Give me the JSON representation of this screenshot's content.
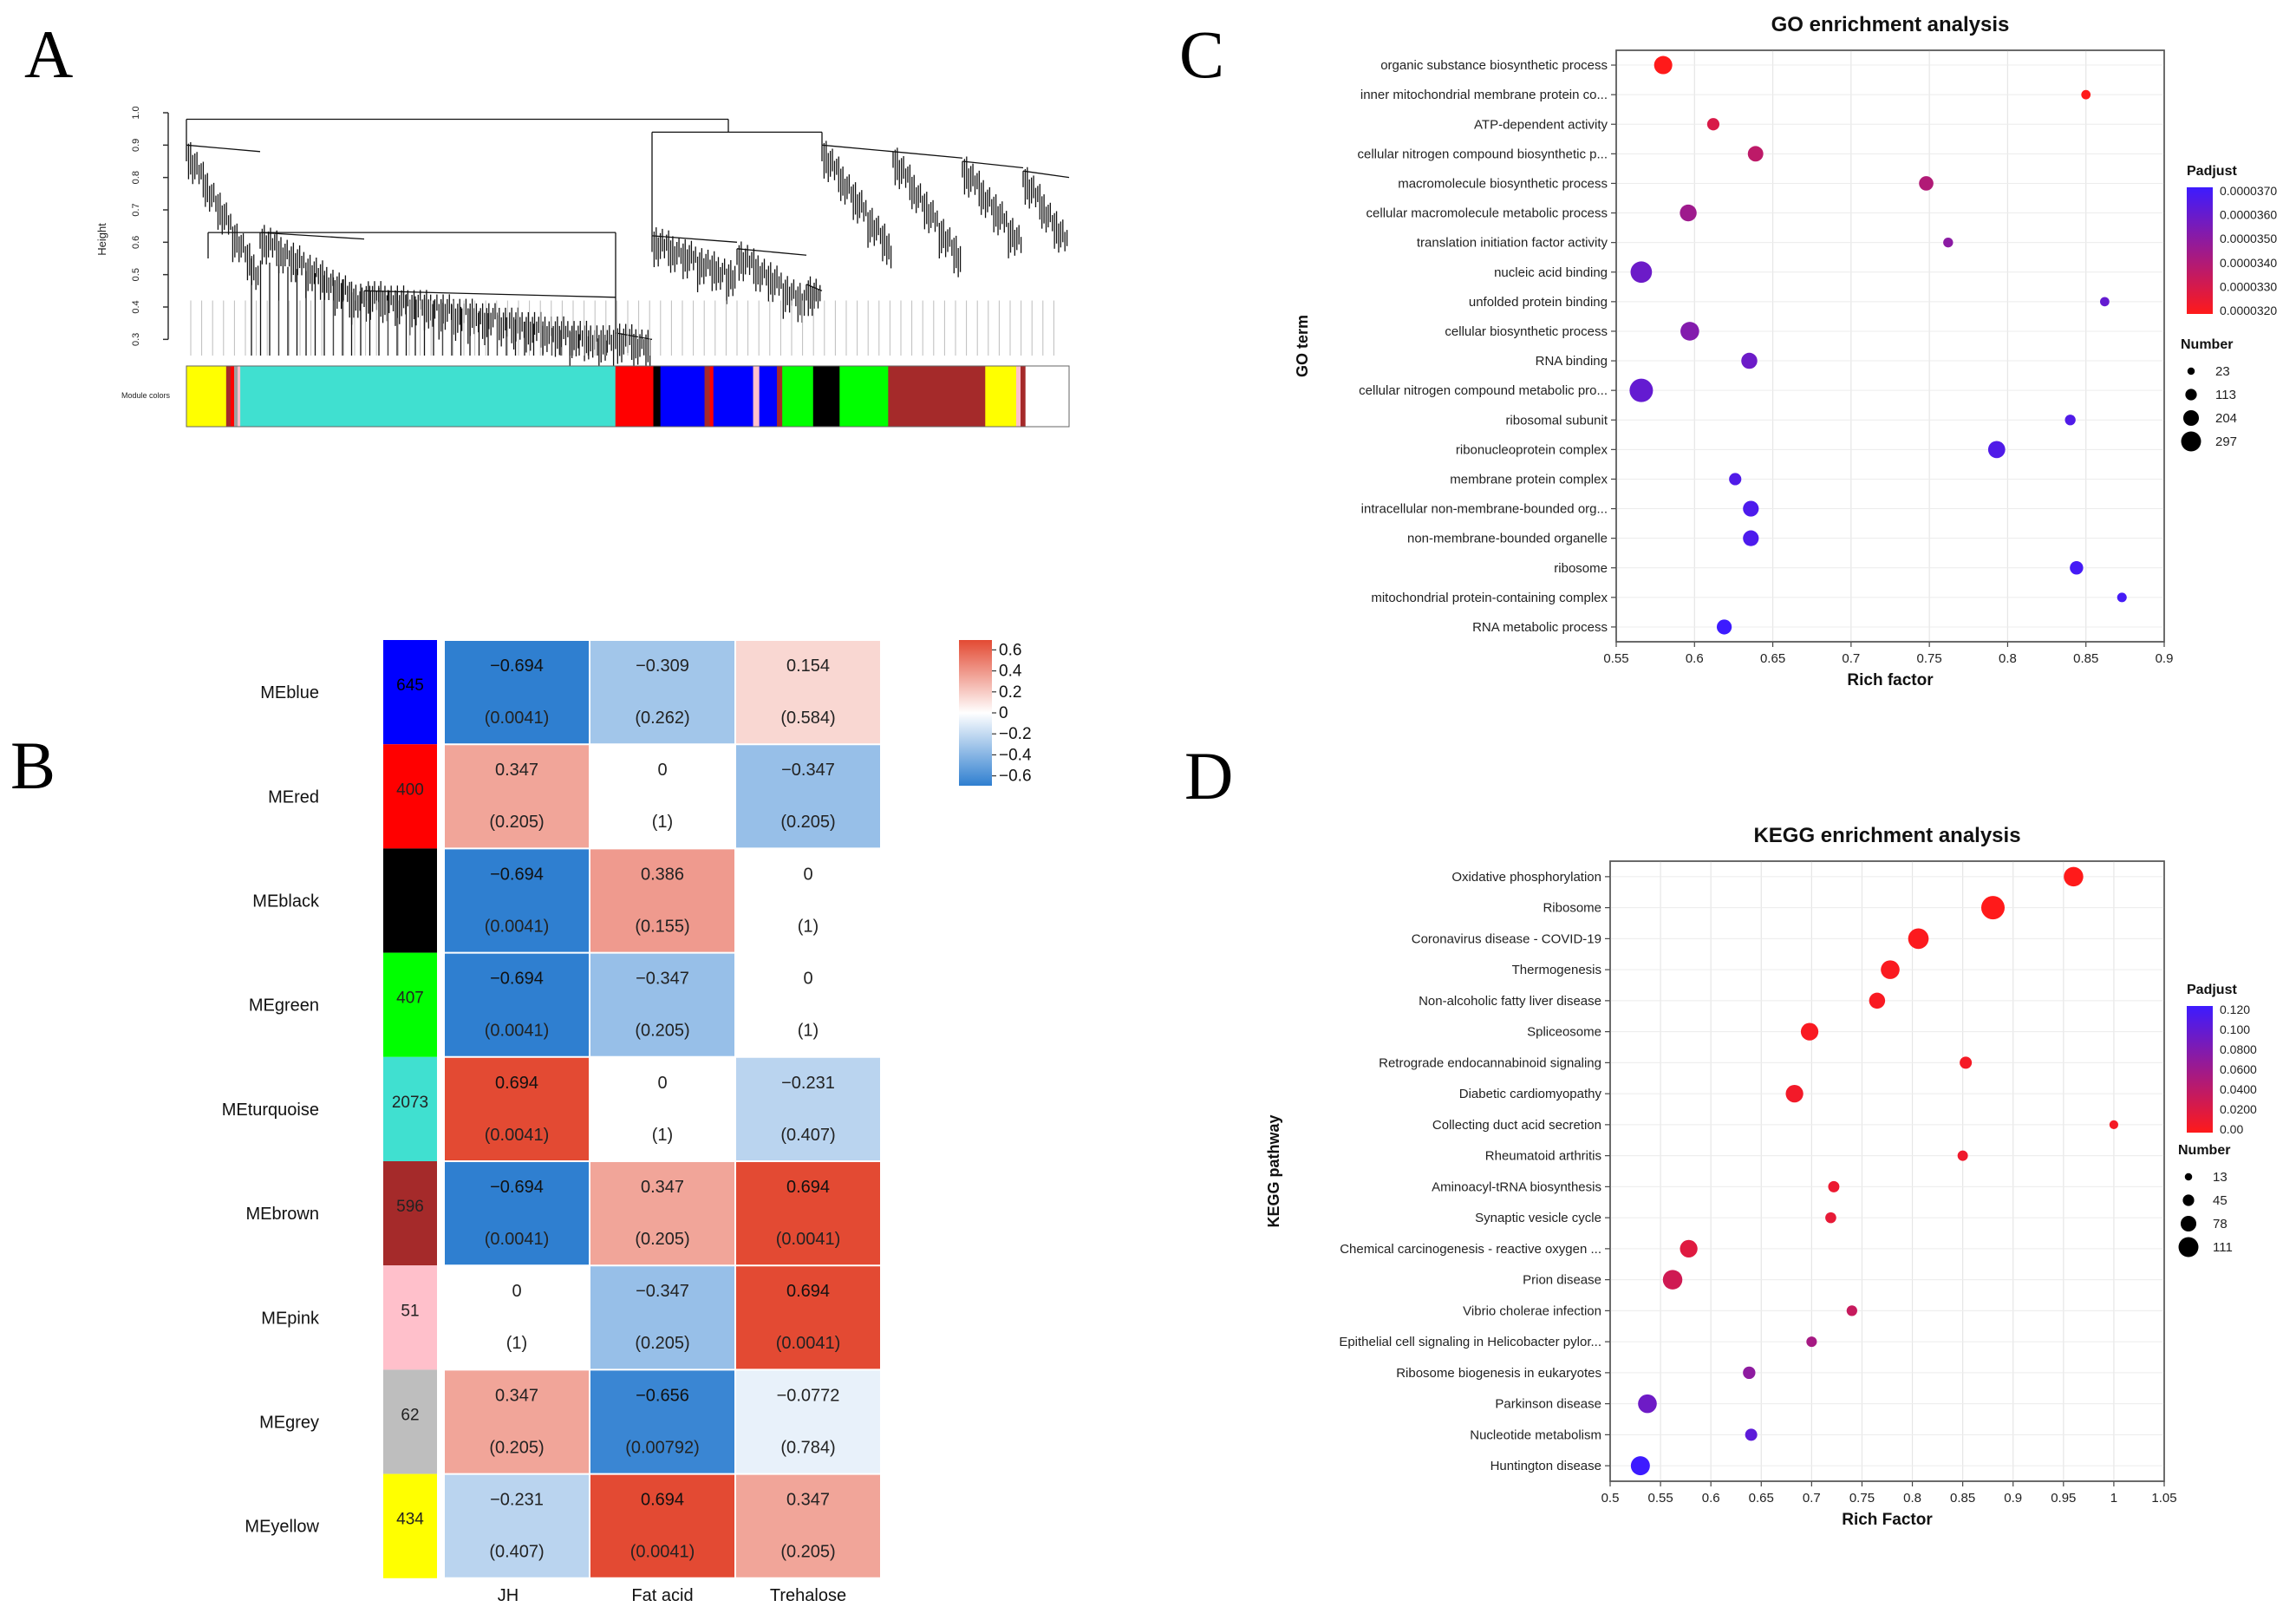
{
  "panels": {
    "a": "A",
    "b": "B",
    "c": "C",
    "d": "D"
  },
  "chart_data": [
    {
      "panel": "A",
      "type": "dendrogram",
      "ylabel": "Height",
      "yticks": [
        "0.3",
        "0.4",
        "0.5",
        "0.6",
        "0.7",
        "0.8",
        "0.9",
        "1.0"
      ],
      "ylim": [
        0.25,
        1.0
      ],
      "module_row_label": "Module colors",
      "module_bar": [
        {
          "color": "#ffff00",
          "w": 0.045
        },
        {
          "color": "#a52a2a",
          "w": 0.005
        },
        {
          "color": "#ff0000",
          "w": 0.004
        },
        {
          "color": "#a0a0a0",
          "w": 0.004
        },
        {
          "color": "#ffc0cb",
          "w": 0.003
        },
        {
          "color": "#40e0d0",
          "w": 0.425
        },
        {
          "color": "#ff0000",
          "w": 0.043
        },
        {
          "color": "#000000",
          "w": 0.008
        },
        {
          "color": "#0000ff",
          "w": 0.05
        },
        {
          "color": "#a52a2a",
          "w": 0.006
        },
        {
          "color": "#ff0000",
          "w": 0.004
        },
        {
          "color": "#0000ff",
          "w": 0.045
        },
        {
          "color": "#ffc0cb",
          "w": 0.007
        },
        {
          "color": "#0000ff",
          "w": 0.02
        },
        {
          "color": "#a52a2a",
          "w": 0.006
        },
        {
          "color": "#00ff00",
          "w": 0.035
        },
        {
          "color": "#000000",
          "w": 0.03
        },
        {
          "color": "#00ff00",
          "w": 0.055
        },
        {
          "color": "#a52a2a",
          "w": 0.11
        },
        {
          "color": "#ffff00",
          "w": 0.035
        },
        {
          "color": "#ffc0cb",
          "w": 0.005
        },
        {
          "color": "#a52a2a",
          "w": 0.005
        }
      ]
    },
    {
      "panel": "B",
      "type": "heatmap",
      "columns": [
        "JH",
        "Fat acid",
        "Trehalose"
      ],
      "rows": [
        {
          "name": "MEblue",
          "color": "#0000ff",
          "count": "645",
          "cells": [
            [
              "−0.694",
              "(0.0041)"
            ],
            [
              "−0.309",
              "(0.262)"
            ],
            [
              "0.154",
              "(0.584)"
            ]
          ],
          "values": [
            -0.694,
            -0.309,
            0.154
          ]
        },
        {
          "name": "MEred",
          "color": "#ff0000",
          "count": "400",
          "cells": [
            [
              "0.347",
              "(0.205)"
            ],
            [
              "0",
              "(1)"
            ],
            [
              "−0.347",
              "(0.205)"
            ]
          ],
          "values": [
            0.347,
            0,
            -0.347
          ]
        },
        {
          "name": "MEblack",
          "color": "#000000",
          "count": "",
          "cells": [
            [
              "−0.694",
              "(0.0041)"
            ],
            [
              "0.386",
              "(0.155)"
            ],
            [
              "0",
              "(1)"
            ]
          ],
          "values": [
            -0.694,
            0.386,
            0
          ]
        },
        {
          "name": "MEgreen",
          "color": "#00ff00",
          "count": "407",
          "cells": [
            [
              "−0.694",
              "(0.0041)"
            ],
            [
              "−0.347",
              "(0.205)"
            ],
            [
              "0",
              "(1)"
            ]
          ],
          "values": [
            -0.694,
            -0.347,
            0
          ]
        },
        {
          "name": "MEturquoise",
          "color": "#40e0d0",
          "count": "2073",
          "cells": [
            [
              "0.694",
              "(0.0041)"
            ],
            [
              "0",
              "(1)"
            ],
            [
              "−0.231",
              "(0.407)"
            ]
          ],
          "values": [
            0.694,
            0,
            -0.231
          ]
        },
        {
          "name": "MEbrown",
          "color": "#a52a2a",
          "count": "596",
          "cells": [
            [
              "−0.694",
              "(0.0041)"
            ],
            [
              "0.347",
              "(0.205)"
            ],
            [
              "0.694",
              "(0.0041)"
            ]
          ],
          "values": [
            -0.694,
            0.347,
            0.694
          ]
        },
        {
          "name": "MEpink",
          "color": "#ffc0cb",
          "count": "51",
          "cells": [
            [
              "0",
              "(1)"
            ],
            [
              "−0.347",
              "(0.205)"
            ],
            [
              "0.694",
              "(0.0041)"
            ]
          ],
          "values": [
            0,
            -0.347,
            0.694
          ]
        },
        {
          "name": "MEgrey",
          "color": "#bebebe",
          "count": "62",
          "cells": [
            [
              "0.347",
              "(0.205)"
            ],
            [
              "−0.656",
              "(0.00792)"
            ],
            [
              "−0.0772",
              "(0.784)"
            ]
          ],
          "values": [
            0.347,
            -0.656,
            -0.0772
          ]
        },
        {
          "name": "MEyellow",
          "color": "#ffff00",
          "count": "434",
          "cells": [
            [
              "−0.231",
              "(0.407)"
            ],
            [
              "0.694",
              "(0.0041)"
            ],
            [
              "0.347",
              "(0.205)"
            ]
          ],
          "values": [
            -0.231,
            0.694,
            0.347
          ]
        }
      ],
      "legend_ticks": [
        "0.6",
        "0.4",
        "0.2",
        "0",
        "−0.2",
        "−0.4",
        "−0.6"
      ],
      "legend_values": [
        0.6,
        0.4,
        0.2,
        0,
        -0.2,
        -0.4,
        -0.6
      ],
      "colors": {
        "neg": "#2f7fd0",
        "mid": "#ffffff",
        "pos": "#e34a33"
      }
    },
    {
      "panel": "C",
      "type": "scatter",
      "title": "GO enrichment analysis",
      "xlabel": "Rich factor",
      "ylabel": "GO term",
      "xlim": [
        0.55,
        0.9
      ],
      "xticks": [
        "0.55",
        "0.6",
        "0.65",
        "0.7",
        "0.75",
        "0.8",
        "0.85",
        "0.9"
      ],
      "xtick_values": [
        0.55,
        0.6,
        0.65,
        0.7,
        0.75,
        0.8,
        0.85,
        0.9
      ],
      "color_legend": {
        "title": "Padjust",
        "ticks": [
          "0.0000370",
          "0.0000360",
          "0.0000350",
          "0.0000340",
          "0.0000330",
          "0.0000320"
        ],
        "high": "#3d1bff",
        "low": "#ff1a1a"
      },
      "size_legend": {
        "title": "Number",
        "labels": [
          "23",
          "113",
          "204",
          "297"
        ],
        "values": [
          23,
          113,
          204,
          297
        ]
      },
      "points": [
        {
          "term": "organic substance biosynthetic process",
          "x": 0.58,
          "n": 200,
          "padj": 3.2e-05
        },
        {
          "term": "inner mitochondrial membrane protein co...",
          "x": 0.85,
          "n": 35,
          "padj": 3.2e-05
        },
        {
          "term": "ATP-dependent activity",
          "x": 0.612,
          "n": 90,
          "padj": 3.3e-05
        },
        {
          "term": "cellular nitrogen compound biosynthetic p...",
          "x": 0.639,
          "n": 150,
          "padj": 3.37e-05
        },
        {
          "term": "macromolecule biosynthetic process",
          "x": 0.748,
          "n": 130,
          "padj": 3.4e-05
        },
        {
          "term": "cellular macromolecule metabolic process",
          "x": 0.596,
          "n": 175,
          "padj": 3.45e-05
        },
        {
          "term": "translation initiation factor activity",
          "x": 0.762,
          "n": 45,
          "padj": 3.5e-05
        },
        {
          "term": "nucleic acid binding",
          "x": 0.566,
          "n": 260,
          "padj": 3.58e-05
        },
        {
          "term": "unfolded protein binding",
          "x": 0.862,
          "n": 35,
          "padj": 3.6e-05
        },
        {
          "term": "cellular biosynthetic process",
          "x": 0.597,
          "n": 210,
          "padj": 3.52e-05
        },
        {
          "term": "RNA binding",
          "x": 0.635,
          "n": 160,
          "padj": 3.58e-05
        },
        {
          "term": "cellular nitrogen compound metabolic pro...",
          "x": 0.566,
          "n": 297,
          "padj": 3.6e-05
        },
        {
          "term": "ribosomal subunit",
          "x": 0.84,
          "n": 60,
          "padj": 3.65e-05
        },
        {
          "term": "ribonucleoprotein complex",
          "x": 0.793,
          "n": 180,
          "padj": 3.65e-05
        },
        {
          "term": "membrane protein complex",
          "x": 0.626,
          "n": 90,
          "padj": 3.65e-05
        },
        {
          "term": "intracellular non-membrane-bounded org...",
          "x": 0.636,
          "n": 155,
          "padj": 3.66e-05
        },
        {
          "term": "non-membrane-bounded organelle",
          "x": 0.636,
          "n": 155,
          "padj": 3.66e-05
        },
        {
          "term": "ribosome",
          "x": 0.844,
          "n": 110,
          "padj": 3.68e-05
        },
        {
          "term": "mitochondrial protein-containing complex",
          "x": 0.873,
          "n": 40,
          "padj": 3.68e-05
        },
        {
          "term": "RNA metabolic process",
          "x": 0.619,
          "n": 140,
          "padj": 3.7e-05
        }
      ]
    },
    {
      "panel": "D",
      "type": "scatter",
      "title": "KEGG enrichment analysis",
      "xlabel": "Rich Factor",
      "ylabel": "KEGG pathway",
      "xlim": [
        0.5,
        1.05
      ],
      "xticks": [
        "0.5",
        "0.55",
        "0.6",
        "0.65",
        "0.7",
        "0.75",
        "0.8",
        "0.85",
        "0.9",
        "0.95",
        "1",
        "1.05"
      ],
      "xtick_values": [
        0.5,
        0.55,
        0.6,
        0.65,
        0.7,
        0.75,
        0.8,
        0.85,
        0.9,
        0.95,
        1.0,
        1.05
      ],
      "color_legend": {
        "title": "Padjust",
        "ticks": [
          "0.120",
          "0.100",
          "0.0800",
          "0.0600",
          "0.0400",
          "0.0200",
          "0.00"
        ],
        "high": "#3d1bff",
        "low": "#ff1a1a"
      },
      "size_legend": {
        "title": "Number",
        "labels": [
          "13",
          "45",
          "78",
          "111"
        ],
        "values": [
          13,
          45,
          78,
          111
        ]
      },
      "points": [
        {
          "term": "Oxidative phosphorylation",
          "x": 0.96,
          "n": 85,
          "padj": 0.0
        },
        {
          "term": "Ribosome",
          "x": 0.88,
          "n": 111,
          "padj": 0.0
        },
        {
          "term": "Coronavirus disease - COVID-19",
          "x": 0.806,
          "n": 92,
          "padj": 0.002
        },
        {
          "term": "Thermogenesis",
          "x": 0.778,
          "n": 80,
          "padj": 0.003
        },
        {
          "term": "Non-alcoholic fatty liver disease",
          "x": 0.765,
          "n": 62,
          "padj": 0.004
        },
        {
          "term": "Spliceosome",
          "x": 0.698,
          "n": 72,
          "padj": 0.004
        },
        {
          "term": "Retrograde endocannabinoid signaling",
          "x": 0.853,
          "n": 36,
          "padj": 0.006
        },
        {
          "term": "Diabetic cardiomyopathy",
          "x": 0.683,
          "n": 72,
          "padj": 0.008
        },
        {
          "term": "Collecting duct acid secretion",
          "x": 1.0,
          "n": 14,
          "padj": 0.006
        },
        {
          "term": "Rheumatoid arthritis",
          "x": 0.85,
          "n": 24,
          "padj": 0.01
        },
        {
          "term": "Aminoacyl-tRNA biosynthesis",
          "x": 0.722,
          "n": 30,
          "padj": 0.012
        },
        {
          "term": "Synaptic vesicle cycle",
          "x": 0.719,
          "n": 28,
          "padj": 0.015
        },
        {
          "term": "Chemical carcinogenesis - reactive oxygen ...",
          "x": 0.578,
          "n": 72,
          "padj": 0.02
        },
        {
          "term": "Prion disease",
          "x": 0.562,
          "n": 85,
          "padj": 0.03
        },
        {
          "term": "Vibrio cholerae infection",
          "x": 0.74,
          "n": 26,
          "padj": 0.035
        },
        {
          "term": "Epithelial cell signaling in Helicobacter pylor...",
          "x": 0.7,
          "n": 25,
          "padj": 0.055
        },
        {
          "term": "Ribosome biogenesis in eukaryotes",
          "x": 0.638,
          "n": 38,
          "padj": 0.07
        },
        {
          "term": "Parkinson disease",
          "x": 0.537,
          "n": 80,
          "padj": 0.09
        },
        {
          "term": "Nucleotide metabolism",
          "x": 0.64,
          "n": 36,
          "padj": 0.1
        },
        {
          "term": "Huntington disease",
          "x": 0.53,
          "n": 82,
          "padj": 0.12
        }
      ]
    }
  ]
}
